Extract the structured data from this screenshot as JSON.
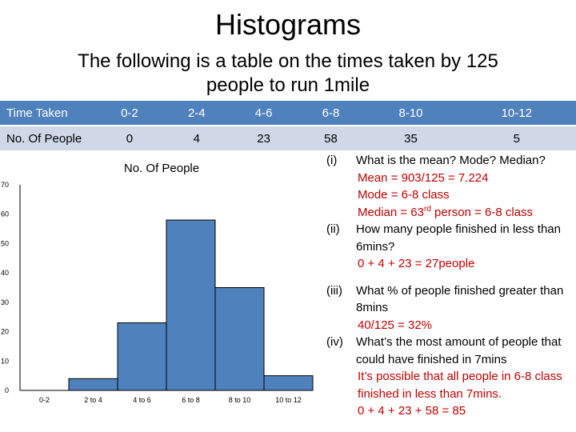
{
  "slide": {
    "title": "Histograms",
    "subtitle": "The following is a table on the times taken by 125 people to run 1mile"
  },
  "table": {
    "header_label": "Time Taken",
    "row_label": "No. Of People",
    "times": [
      "0-2",
      "2-4",
      "4-6",
      "6-8",
      "8-10",
      "10-12"
    ],
    "counts": [
      "0",
      "4",
      "23",
      "58",
      "35",
      "5"
    ]
  },
  "chart_data": {
    "type": "bar",
    "title": "No. Of People",
    "categories": [
      "0-2",
      "2 to 4",
      "4 to 6",
      "6 to 8",
      "8 to 10",
      "10 to 12"
    ],
    "values": [
      0,
      4,
      23,
      58,
      35,
      5
    ],
    "ylim": [
      0,
      70
    ],
    "yticks": [
      0,
      10,
      20,
      30,
      40,
      50,
      60,
      70
    ],
    "bar_color": "#4f81bd",
    "grid": false
  },
  "qa": {
    "q1": {
      "num": "(i)",
      "text": "What is the mean? Mode? Median?",
      "a1": "Mean = 903/125 = 7.224",
      "a2": "Mode = 6-8 class",
      "a3_pre": "Median = 63",
      "a3_sup": "rd",
      "a3_post": " person = 6-8 class"
    },
    "q2": {
      "num": "(ii)",
      "text": "How many people finished in less than 6mins?",
      "a1": "0 + 4 + 23 = 27people"
    },
    "q3": {
      "num": "(iii)",
      "text": "What % of people finished greater than 8mins",
      "a1": "40/125 = 32%"
    },
    "q4": {
      "num": "(iv)",
      "text": "What’s the most amount of people that could have finished in 7mins",
      "a1": "It’s possible that all people in 6-8 class finished in less than 7mins.",
      "a2": "0 + 4 + 23 + 58 = 85"
    }
  },
  "colors": {
    "accent": "#4f81bd",
    "row_alt": "#d0d8e8",
    "answer": "#c00000"
  }
}
